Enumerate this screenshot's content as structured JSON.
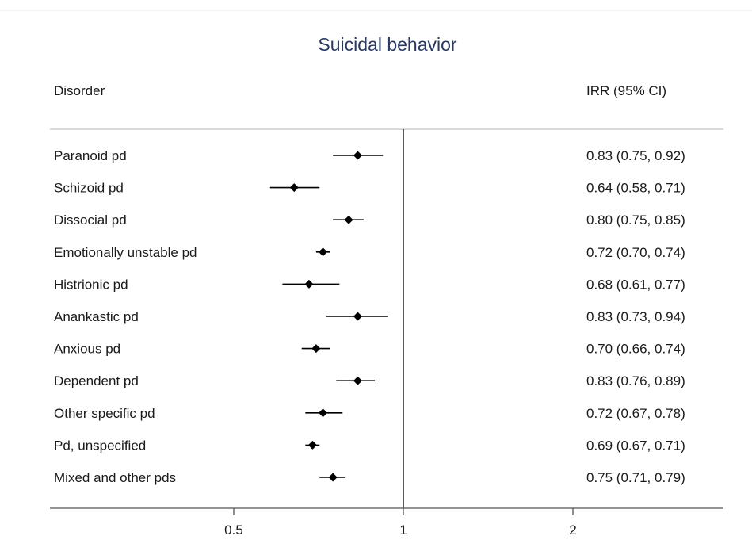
{
  "chart_data": {
    "type": "forest",
    "title": "Suicidal behavior",
    "column_headers": {
      "left": "Disorder",
      "right": "IRR (95% CI)"
    },
    "x_scale": "log",
    "x_ticks": [
      0.5,
      1,
      2
    ],
    "x_tick_labels": [
      "0.5",
      "1",
      "2"
    ],
    "reference_line": 1,
    "rows": [
      {
        "label": "Paranoid pd",
        "est": 0.83,
        "lo": 0.75,
        "hi": 0.92,
        "text": "0.83 (0.75, 0.92)"
      },
      {
        "label": "Schizoid pd",
        "est": 0.64,
        "lo": 0.58,
        "hi": 0.71,
        "text": "0.64 (0.58, 0.71)"
      },
      {
        "label": "Dissocial pd",
        "est": 0.8,
        "lo": 0.75,
        "hi": 0.85,
        "text": "0.80 (0.75, 0.85)"
      },
      {
        "label": "Emotionally unstable pd",
        "est": 0.72,
        "lo": 0.7,
        "hi": 0.74,
        "text": "0.72 (0.70, 0.74)"
      },
      {
        "label": "Histrionic pd",
        "est": 0.68,
        "lo": 0.61,
        "hi": 0.77,
        "text": "0.68 (0.61, 0.77)"
      },
      {
        "label": "Anankastic pd",
        "est": 0.83,
        "lo": 0.73,
        "hi": 0.94,
        "text": "0.83 (0.73, 0.94)"
      },
      {
        "label": "Anxious pd",
        "est": 0.7,
        "lo": 0.66,
        "hi": 0.74,
        "text": "0.70 (0.66, 0.74)"
      },
      {
        "label": "Dependent pd",
        "est": 0.83,
        "lo": 0.76,
        "hi": 0.89,
        "text": "0.83 (0.76, 0.89)"
      },
      {
        "label": "Other specific pd",
        "est": 0.72,
        "lo": 0.67,
        "hi": 0.78,
        "text": "0.72 (0.67, 0.78)"
      },
      {
        "label": "Pd, unspecified",
        "est": 0.69,
        "lo": 0.67,
        "hi": 0.71,
        "text": "0.69 (0.67, 0.71)"
      },
      {
        "label": "Mixed and other pds",
        "est": 0.75,
        "lo": 0.71,
        "hi": 0.79,
        "text": "0.75 (0.71, 0.79)"
      }
    ],
    "colors": {
      "title": "#2a3a5f",
      "text": "#1a1a1a",
      "marks": "#000000",
      "divider": "#d9d9d9",
      "axis": "#555555"
    }
  }
}
